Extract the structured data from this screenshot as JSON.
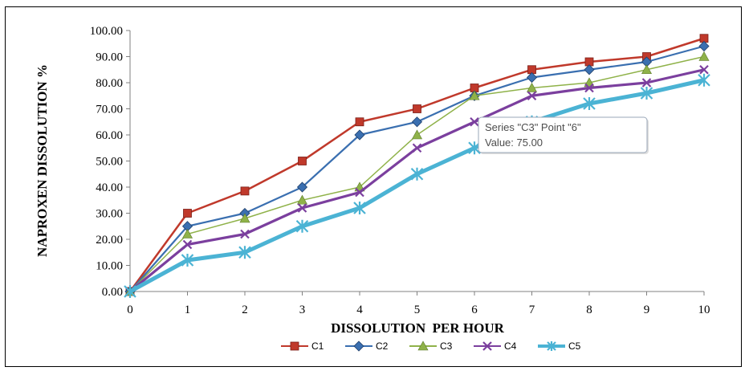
{
  "chart_data": {
    "type": "line",
    "title": "",
    "xlabel": "DISSOLUTION  PER HOUR",
    "ylabel": "NAPROXEN DISSOLUTION %",
    "x": [
      0,
      1,
      2,
      3,
      4,
      5,
      6,
      7,
      8,
      9,
      10
    ],
    "xlim": [
      0,
      10
    ],
    "ylim": [
      0,
      100
    ],
    "yticks": [
      "0.00",
      "10.00",
      "20.00",
      "30.00",
      "40.00",
      "50.00",
      "60.00",
      "70.00",
      "80.00",
      "90.00",
      "100.00"
    ],
    "grid": false,
    "legend_position": "bottom",
    "series": [
      {
        "name": "C1",
        "color": "#c0392b",
        "marker": "square",
        "values": [
          0,
          30,
          38.5,
          50,
          65,
          70,
          78,
          85,
          88,
          90,
          97
        ]
      },
      {
        "name": "C2",
        "color": "#3a6fb0",
        "marker": "diamond",
        "values": [
          0,
          25,
          30,
          40,
          60,
          65,
          75,
          82,
          85,
          88,
          94
        ]
      },
      {
        "name": "C3",
        "color": "#8fb249",
        "marker": "triangle",
        "values": [
          0,
          22,
          28,
          35,
          40,
          60,
          75,
          78,
          80,
          85,
          90
        ]
      },
      {
        "name": "C4",
        "color": "#7b3f9e",
        "marker": "x",
        "values": [
          0,
          18,
          22,
          32,
          38,
          55,
          65,
          75,
          78,
          80,
          85
        ]
      },
      {
        "name": "C5",
        "color": "#4bb3d4",
        "marker": "star",
        "values": [
          0,
          12,
          15,
          25,
          32,
          45,
          55,
          65,
          72,
          76,
          81
        ]
      }
    ],
    "tooltip": {
      "series": "C3",
      "point": 6,
      "line1": "Series \"C3\" Point \"6\"",
      "line2": "Value: 75.00"
    }
  }
}
